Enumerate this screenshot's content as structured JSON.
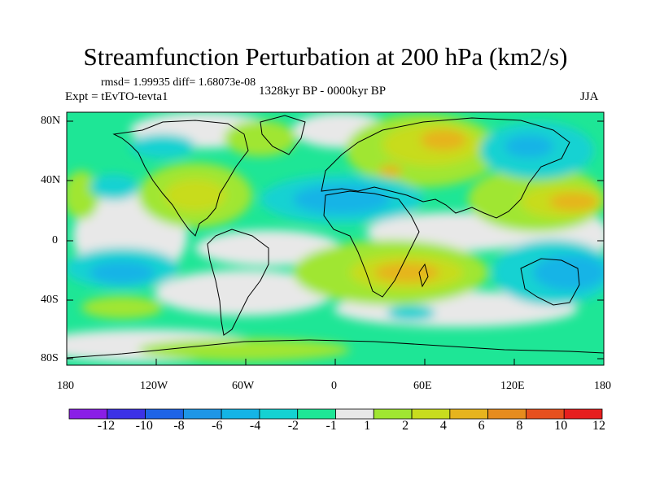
{
  "title": "Streamfunction Perturbation at 200 hPa (km2/s)",
  "stats_text": "rmsd= 1.99935 diff= 1.68073e-08",
  "experiment_text": "Expt = tEvTO-tevta1",
  "period_text": "1328kyr BP - 0000kyr BP",
  "season_text": "JJA",
  "lat_labels": [
    "80N",
    "40N",
    "0",
    "40S",
    "80S"
  ],
  "lon_labels": [
    "180",
    "120W",
    "60W",
    "0",
    "60E",
    "120E",
    "180"
  ],
  "colorbar": {
    "labels": [
      "-12",
      "-10",
      "-8",
      "-6",
      "-4",
      "-2",
      "-1",
      "1",
      "2",
      "4",
      "6",
      "8",
      "10",
      "12"
    ],
    "colors": [
      "#8a1ee6",
      "#3c32e6",
      "#1e64e6",
      "#1e96e6",
      "#14b4e6",
      "#14d2d2",
      "#1ee696",
      "#e8e8e8",
      "#a0e632",
      "#c8dc1e",
      "#e6b41e",
      "#e68c1e",
      "#e6501e",
      "#e61e1e"
    ]
  },
  "field_colors": {
    "neg_weak": "#1ee696",
    "neg_mid": "#14d2d2",
    "neg_strong": "#14b4e6",
    "zero": "#e8e8e8",
    "pos_weak": "#a0e632",
    "pos_mid": "#c8dc1e",
    "pos_strong": "#e6b41e"
  }
}
